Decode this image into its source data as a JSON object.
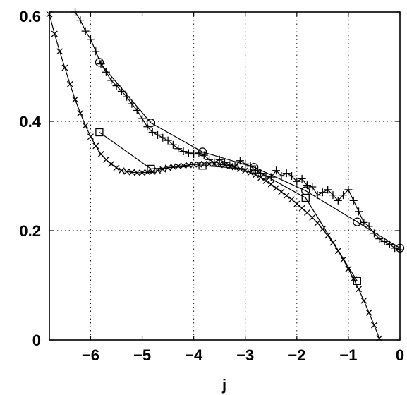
{
  "chart_data": {
    "type": "line",
    "title": "",
    "xlabel": "j",
    "ylabel": "",
    "xlim": [
      -6.8,
      0
    ],
    "ylim": [
      0,
      0.6
    ],
    "grid": true,
    "x_ticks": [
      -6,
      -5,
      -4,
      -3,
      -2,
      -1,
      0
    ],
    "y_ticks": [
      0,
      0.2,
      0.4,
      0.6
    ],
    "x_tick_labels": [
      "−6",
      "−5",
      "−4",
      "−3",
      "−2",
      "−1",
      "0"
    ],
    "y_tick_labels": [
      "0",
      "0.2",
      "0.4",
      "0.6"
    ],
    "series": [
      {
        "marker": "plus",
        "x": [
          -6.3,
          -6.2,
          -6.1,
          -6.0,
          -5.9,
          -5.8,
          -5.7,
          -5.6,
          -5.5,
          -5.4,
          -5.3,
          -5.2,
          -5.1,
          -5.0,
          -4.9,
          -4.8,
          -4.7,
          -4.6,
          -4.5,
          -4.4,
          -4.3,
          -4.2,
          -4.1,
          -4.0,
          -3.9,
          -3.8,
          -3.7,
          -3.6,
          -3.5,
          -3.4,
          -3.3,
          -3.2,
          -3.1,
          -3.0,
          -2.9,
          -2.8,
          -2.7,
          -2.6,
          -2.5,
          -2.4,
          -2.3,
          -2.2,
          -2.1,
          -2.0,
          -1.9,
          -1.8,
          -1.7,
          -1.6,
          -1.5,
          -1.4,
          -1.3,
          -1.2,
          -1.1,
          -1.0,
          -0.9,
          -0.8,
          -0.7,
          -0.6,
          -0.5,
          -0.4,
          -0.3,
          -0.2,
          -0.1,
          0.0
        ],
        "y": [
          0.6,
          0.585,
          0.565,
          0.55,
          0.528,
          0.505,
          0.49,
          0.475,
          0.465,
          0.455,
          0.445,
          0.432,
          0.42,
          0.405,
          0.39,
          0.38,
          0.375,
          0.37,
          0.365,
          0.357,
          0.35,
          0.345,
          0.342,
          0.34,
          0.342,
          0.338,
          0.33,
          0.325,
          0.33,
          0.325,
          0.32,
          0.318,
          0.328,
          0.322,
          0.318,
          0.31,
          0.305,
          0.3,
          0.298,
          0.31,
          0.3,
          0.305,
          0.3,
          0.29,
          0.295,
          0.283,
          0.28,
          0.265,
          0.27,
          0.275,
          0.265,
          0.255,
          0.265,
          0.275,
          0.255,
          0.235,
          0.215,
          0.208,
          0.195,
          0.185,
          0.18,
          0.175,
          0.168,
          0.165
        ]
      },
      {
        "marker": "circle",
        "x": [
          -5.83,
          -4.83,
          -3.83,
          -2.83,
          -1.83,
          -0.83,
          0.0
        ],
        "y": [
          0.508,
          0.397,
          0.344,
          0.316,
          0.273,
          0.216,
          0.168
        ]
      },
      {
        "marker": "cross",
        "x": [
          -6.8,
          -6.7,
          -6.6,
          -6.5,
          -6.4,
          -6.3,
          -6.2,
          -6.1,
          -6.0,
          -5.9,
          -5.8,
          -5.7,
          -5.6,
          -5.5,
          -5.4,
          -5.3,
          -5.2,
          -5.1,
          -5.0,
          -4.9,
          -4.8,
          -4.7,
          -4.6,
          -4.5,
          -4.4,
          -4.3,
          -4.2,
          -4.1,
          -4.0,
          -3.9,
          -3.8,
          -3.7,
          -3.6,
          -3.5,
          -3.4,
          -3.3,
          -3.2,
          -3.1,
          -3.0,
          -2.9,
          -2.8,
          -2.7,
          -2.6,
          -2.5,
          -2.4,
          -2.3,
          -2.2,
          -2.1,
          -2.0,
          -1.9,
          -1.8,
          -1.7,
          -1.6,
          -1.5,
          -1.4,
          -1.3,
          -1.2,
          -1.1,
          -1.0,
          -0.9,
          -0.8,
          -0.7,
          -0.6,
          -0.5,
          -0.4
        ],
        "y": [
          0.596,
          0.56,
          0.528,
          0.498,
          0.468,
          0.44,
          0.415,
          0.392,
          0.372,
          0.355,
          0.34,
          0.33,
          0.322,
          0.315,
          0.31,
          0.308,
          0.307,
          0.306,
          0.306,
          0.307,
          0.308,
          0.31,
          0.312,
          0.315,
          0.317,
          0.318,
          0.319,
          0.32,
          0.321,
          0.321,
          0.322,
          0.322,
          0.322,
          0.321,
          0.32,
          0.318,
          0.316,
          0.313,
          0.31,
          0.306,
          0.302,
          0.297,
          0.291,
          0.285,
          0.278,
          0.271,
          0.264,
          0.257,
          0.249,
          0.241,
          0.233,
          0.224,
          0.214,
          0.203,
          0.191,
          0.178,
          0.163,
          0.147,
          0.13,
          0.112,
          0.093,
          0.072,
          0.05,
          0.027,
          0.003
        ]
      },
      {
        "marker": "square",
        "x": [
          -5.83,
          -4.83,
          -3.83,
          -2.83,
          -1.83,
          -0.83
        ],
        "y": [
          0.38,
          0.313,
          0.319,
          0.312,
          0.26,
          0.108
        ]
      }
    ]
  }
}
